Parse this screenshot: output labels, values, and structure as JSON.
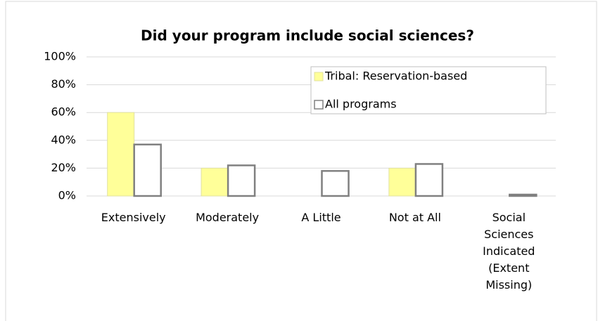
{
  "chart_data": {
    "type": "bar",
    "title": "Did your program include social sciences?",
    "categories": [
      "Extensively",
      "Moderately",
      "A Little",
      "Not at All",
      "Social Sciences Indicated (Extent Missing)"
    ],
    "series": [
      {
        "name": "Tribal: Reservation-based",
        "color": "#ffff99",
        "values": [
          60,
          20,
          0,
          20,
          0
        ]
      },
      {
        "name": "All programs",
        "color": "#ffffff",
        "values": [
          37,
          22,
          18,
          23,
          1
        ]
      }
    ],
    "ylim": [
      0,
      100
    ],
    "yticks": [
      {
        "value": 0,
        "label": "0%"
      },
      {
        "value": 20,
        "label": "20%"
      },
      {
        "value": 40,
        "label": "40%"
      },
      {
        "value": 60,
        "label": "60%"
      },
      {
        "value": 80,
        "label": "80%"
      },
      {
        "value": 100,
        "label": "100%"
      }
    ],
    "grid": true,
    "legend": "upper right"
  }
}
